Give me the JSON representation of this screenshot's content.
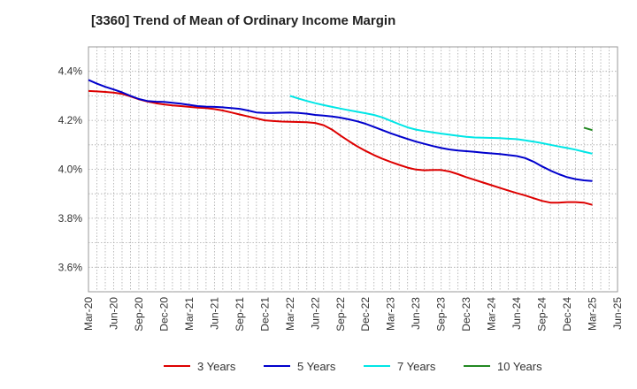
{
  "title": "[3360]  Trend of Mean of Ordinary Income Margin",
  "chart_data": {
    "type": "line",
    "title": "[3360]  Trend of Mean of Ordinary Income Margin",
    "xlabel": "",
    "ylabel": "",
    "x_ticks": [
      "Mar-20",
      "Jun-20",
      "Sep-20",
      "Dec-20",
      "Mar-21",
      "Jun-21",
      "Sep-21",
      "Dec-21",
      "Mar-22",
      "Jun-22",
      "Sep-22",
      "Dec-22",
      "Mar-23",
      "Jun-23",
      "Sep-23",
      "Dec-23",
      "Mar-24",
      "Jun-24",
      "Sep-24",
      "Dec-24",
      "Mar-25",
      "Jun-25"
    ],
    "y_ticks": [
      "3.6%",
      "3.8%",
      "4.0%",
      "4.2%",
      "4.4%"
    ],
    "y_tick_values": [
      3.6,
      3.8,
      4.0,
      4.2,
      4.4
    ],
    "ylim": [
      3.5,
      4.5
    ],
    "y_unit": "%",
    "grid": true,
    "legend_position": "bottom",
    "series": [
      {
        "name": "3 Years",
        "color": "#dd0000",
        "x": [
          "2020-03",
          "2020-04",
          "2020-05",
          "2020-06",
          "2020-07",
          "2020-08",
          "2020-09",
          "2020-10",
          "2020-11",
          "2020-12",
          "2021-01",
          "2021-02",
          "2021-03",
          "2021-04",
          "2021-05",
          "2021-06",
          "2021-07",
          "2021-08",
          "2021-09",
          "2021-10",
          "2021-11",
          "2021-12",
          "2022-01",
          "2022-02",
          "2022-03",
          "2022-04",
          "2022-05",
          "2022-06",
          "2022-07",
          "2022-08",
          "2022-09",
          "2022-10",
          "2022-11",
          "2022-12",
          "2023-01",
          "2023-02",
          "2023-03",
          "2023-04",
          "2023-05",
          "2023-06",
          "2023-07",
          "2023-08",
          "2023-09",
          "2023-10",
          "2023-11",
          "2023-12",
          "2024-01",
          "2024-02",
          "2024-03",
          "2024-04",
          "2024-05",
          "2024-06",
          "2024-07",
          "2024-08",
          "2024-09",
          "2024-10",
          "2024-11",
          "2024-12",
          "2025-01",
          "2025-02",
          "2025-03"
        ],
        "y": [
          4.32,
          4.318,
          4.316,
          4.313,
          4.308,
          4.298,
          4.286,
          4.277,
          4.27,
          4.265,
          4.261,
          4.258,
          4.255,
          4.252,
          4.25,
          4.246,
          4.24,
          4.232,
          4.224,
          4.216,
          4.208,
          4.2,
          4.197,
          4.195,
          4.194,
          4.193,
          4.192,
          4.189,
          4.18,
          4.162,
          4.138,
          4.115,
          4.094,
          4.075,
          4.058,
          4.043,
          4.03,
          4.018,
          4.007,
          3.999,
          3.996,
          3.997,
          3.997,
          3.991,
          3.98,
          3.968,
          3.957,
          3.946,
          3.935,
          3.924,
          3.913,
          3.903,
          3.893,
          3.882,
          3.871,
          3.864,
          3.864,
          3.866,
          3.866,
          3.864,
          3.855
        ]
      },
      {
        "name": "5 Years",
        "color": "#0000cc",
        "x": [
          "2020-03",
          "2020-04",
          "2020-05",
          "2020-06",
          "2020-07",
          "2020-08",
          "2020-09",
          "2020-10",
          "2020-11",
          "2020-12",
          "2021-01",
          "2021-02",
          "2021-03",
          "2021-04",
          "2021-05",
          "2021-06",
          "2021-07",
          "2021-08",
          "2021-09",
          "2021-10",
          "2021-11",
          "2021-12",
          "2022-01",
          "2022-02",
          "2022-03",
          "2022-04",
          "2022-05",
          "2022-06",
          "2022-07",
          "2022-08",
          "2022-09",
          "2022-10",
          "2022-11",
          "2022-12",
          "2023-01",
          "2023-02",
          "2023-03",
          "2023-04",
          "2023-05",
          "2023-06",
          "2023-07",
          "2023-08",
          "2023-09",
          "2023-10",
          "2023-11",
          "2023-12",
          "2024-01",
          "2024-02",
          "2024-03",
          "2024-04",
          "2024-05",
          "2024-06",
          "2024-07",
          "2024-08",
          "2024-09",
          "2024-10",
          "2024-11",
          "2024-12",
          "2025-01",
          "2025-02",
          "2025-03"
        ],
        "y": [
          4.365,
          4.35,
          4.337,
          4.326,
          4.314,
          4.3,
          4.287,
          4.279,
          4.276,
          4.275,
          4.272,
          4.268,
          4.263,
          4.258,
          4.256,
          4.255,
          4.253,
          4.25,
          4.247,
          4.24,
          4.232,
          4.23,
          4.23,
          4.231,
          4.232,
          4.23,
          4.227,
          4.222,
          4.219,
          4.216,
          4.211,
          4.204,
          4.196,
          4.186,
          4.173,
          4.16,
          4.147,
          4.135,
          4.124,
          4.113,
          4.104,
          4.095,
          4.087,
          4.081,
          4.077,
          4.074,
          4.071,
          4.068,
          4.065,
          4.062,
          4.058,
          4.054,
          4.046,
          4.031,
          4.012,
          3.995,
          3.98,
          3.968,
          3.96,
          3.955,
          3.952
        ]
      },
      {
        "name": "7 Years",
        "color": "#00e6e6",
        "x": [
          "2022-03",
          "2022-04",
          "2022-05",
          "2022-06",
          "2022-07",
          "2022-08",
          "2022-09",
          "2022-10",
          "2022-11",
          "2022-12",
          "2023-01",
          "2023-02",
          "2023-03",
          "2023-04",
          "2023-05",
          "2023-06",
          "2023-07",
          "2023-08",
          "2023-09",
          "2023-10",
          "2023-11",
          "2023-12",
          "2024-01",
          "2024-02",
          "2024-03",
          "2024-04",
          "2024-05",
          "2024-06",
          "2024-07",
          "2024-08",
          "2024-09",
          "2024-10",
          "2024-11",
          "2024-12",
          "2025-01",
          "2025-02",
          "2025-03"
        ],
        "y": [
          4.3,
          4.289,
          4.279,
          4.27,
          4.262,
          4.255,
          4.248,
          4.241,
          4.235,
          4.229,
          4.222,
          4.212,
          4.198,
          4.184,
          4.171,
          4.162,
          4.156,
          4.151,
          4.146,
          4.141,
          4.137,
          4.133,
          4.13,
          4.129,
          4.128,
          4.127,
          4.125,
          4.123,
          4.118,
          4.113,
          4.107,
          4.1,
          4.093,
          4.087,
          4.08,
          4.072,
          4.064
        ]
      },
      {
        "name": "10 Years",
        "color": "#228822",
        "x": [
          "2025-02",
          "2025-03"
        ],
        "y": [
          4.17,
          4.16
        ]
      }
    ]
  }
}
